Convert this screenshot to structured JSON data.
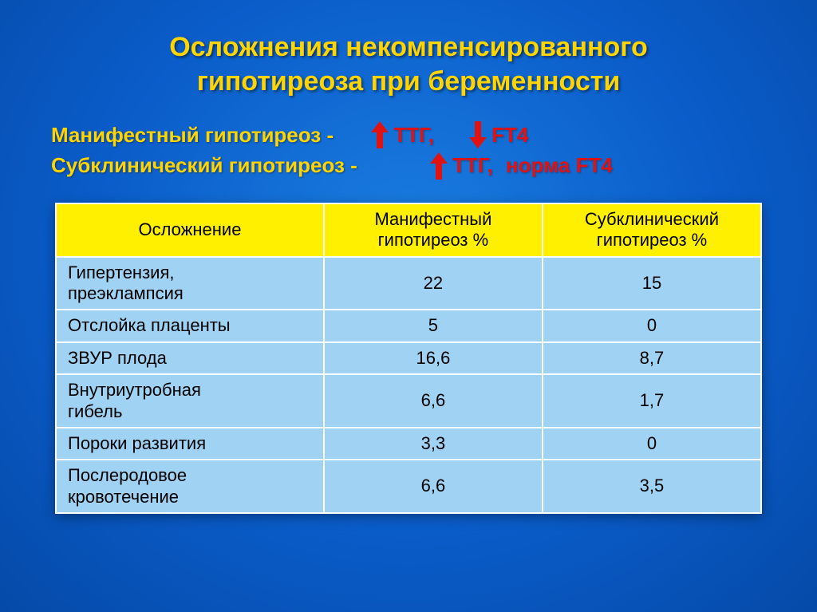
{
  "title_line1": "Осложнения некомпенсированного",
  "title_line2": "гипотиреоза при беременности",
  "definitions": {
    "manifest": {
      "label": "Манифестный гипотиреоз - ",
      "ttg_dir": "up",
      "ttg": "ТТГ,",
      "ft4_dir": "down",
      "ft4": "FТ4"
    },
    "subclinical": {
      "label": "Субклинический гипотиреоз - ",
      "ttg_dir": "up",
      "ttg": "ТТГ,",
      "ft4_dir": "none",
      "ft4": "норма FТ4"
    }
  },
  "table": {
    "columns": [
      "Осложнение",
      "Манифестный гипотиреоз %",
      "Субклинический гипотиреоз %"
    ],
    "rows": [
      [
        "Гипертензия, преэклампсия",
        "22",
        "15"
      ],
      [
        "Отслойка плаценты",
        "5",
        "0"
      ],
      [
        "ЗВУР плода",
        "16,6",
        "8,7"
      ],
      [
        "Внутриутробная гибель",
        "6,6",
        "1,7"
      ],
      [
        "Пороки развития",
        "3,3",
        "0"
      ],
      [
        "Послеродовое кровотечение",
        "6,6",
        "3,5"
      ]
    ],
    "header_bg": "#fff000",
    "cell_bg": "#9fd2f3",
    "border_color": "#ffffff",
    "label_fontsize": 22
  },
  "colors": {
    "title": "#ffd400",
    "def_label": "#ffd400",
    "def_value": "#e01212",
    "arrow": "#e01212",
    "bg_inner": "#1a7de0",
    "bg_outer": "#054aa8"
  }
}
